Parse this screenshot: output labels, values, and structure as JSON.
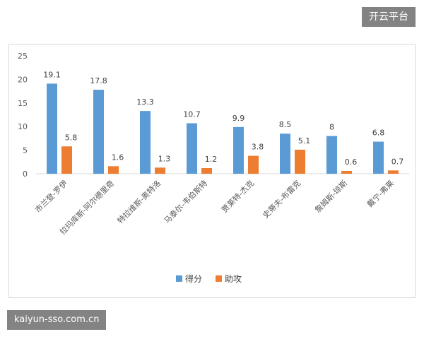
{
  "watermarks": {
    "top": "开云平台",
    "bottom": "kaiyun-sso.com.cn"
  },
  "chart_data": {
    "type": "bar",
    "categories": [
      "市兰登-罗伊",
      "拉玛库斯-阿尔德里奇",
      "特拉维斯-奥特洛",
      "马泰尔-韦伯斯特",
      "贾莱特-杰克",
      "史蒂夫-布雷克",
      "詹姆斯-琼斯",
      "戴宁-弗莱"
    ],
    "series": [
      {
        "name": "得分",
        "values": [
          19.1,
          17.8,
          13.3,
          10.7,
          9.9,
          8.5,
          8,
          6.8
        ],
        "color": "#5b9bd5"
      },
      {
        "name": "助攻",
        "values": [
          5.8,
          1.6,
          1.3,
          1.2,
          3.8,
          5.1,
          0.6,
          0.7
        ],
        "color": "#ed7d31"
      }
    ],
    "ylim": [
      0,
      25
    ],
    "yticks": [
      0,
      5,
      10,
      15,
      20,
      25
    ],
    "grid": false,
    "legend": "bottom-center",
    "data_labels": true
  }
}
